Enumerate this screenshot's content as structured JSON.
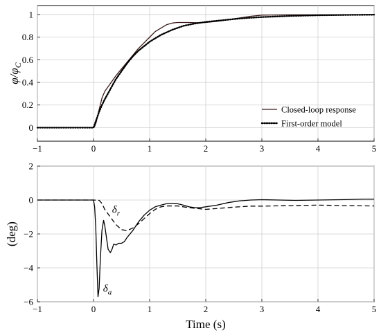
{
  "chart_data": [
    {
      "type": "line",
      "ylabel_main": "φ/φ",
      "ylabel_sub": "C",
      "xlim": [
        -1,
        5
      ],
      "ylim": [
        -0.12,
        1.08
      ],
      "xticks": [
        "−1",
        "0",
        "1",
        "2",
        "3",
        "4",
        "5"
      ],
      "yticks": [
        "0",
        "0.2",
        "0.4",
        "0.6",
        "0.8",
        "1"
      ],
      "grid": true,
      "legend_position": "bottom-right",
      "legend": [
        "Closed-loop response",
        "First-order model"
      ],
      "series": [
        {
          "name": "Closed-loop response",
          "style": "solid",
          "color": "#3a1a1a",
          "x": [
            -1,
            0,
            0.02,
            0.05,
            0.08,
            0.12,
            0.15,
            0.2,
            0.3,
            0.4,
            0.5,
            0.6,
            0.7,
            0.8,
            0.9,
            1.0,
            1.1,
            1.2,
            1.3,
            1.4,
            1.5,
            1.6,
            1.7,
            1.8,
            1.9,
            2.0,
            2.2,
            2.4,
            2.6,
            2.8,
            3.0,
            3.5,
            4.0,
            4.5,
            5.0
          ],
          "y": [
            0,
            0,
            0.01,
            0.05,
            0.12,
            0.2,
            0.26,
            0.32,
            0.39,
            0.46,
            0.52,
            0.58,
            0.64,
            0.7,
            0.75,
            0.8,
            0.85,
            0.88,
            0.91,
            0.925,
            0.93,
            0.93,
            0.93,
            0.928,
            0.928,
            0.93,
            0.94,
            0.955,
            0.97,
            0.985,
            0.995,
            0.998,
            0.998,
            0.998,
            1.0
          ]
        },
        {
          "name": "First-order model",
          "style": "dotted",
          "color": "#000000",
          "x": [
            -1,
            0,
            0.05,
            0.1,
            0.15,
            0.2,
            0.3,
            0.4,
            0.5,
            0.6,
            0.7,
            0.8,
            0.9,
            1.0,
            1.2,
            1.4,
            1.6,
            1.8,
            2.0,
            2.2,
            2.4,
            2.6,
            2.8,
            3.0,
            3.5,
            4.0,
            4.5,
            5.0
          ],
          "y": [
            0,
            0,
            0.07,
            0.14,
            0.2,
            0.25,
            0.34,
            0.43,
            0.5,
            0.57,
            0.63,
            0.68,
            0.72,
            0.76,
            0.82,
            0.865,
            0.9,
            0.92,
            0.935,
            0.945,
            0.955,
            0.965,
            0.972,
            0.978,
            0.988,
            0.994,
            0.997,
            0.999
          ]
        }
      ]
    },
    {
      "type": "line",
      "xlabel": "Time (s)",
      "ylabel": "(deg)",
      "xlim": [
        -1,
        5
      ],
      "ylim": [
        -6,
        2
      ],
      "xticks": [
        "−1",
        "0",
        "1",
        "2",
        "3",
        "4",
        "5"
      ],
      "yticks": [
        "−6",
        "−4",
        "−2",
        "0",
        "2"
      ],
      "grid": true,
      "annotations": [
        {
          "symbol": "δ",
          "sub": "r",
          "x": 0.33,
          "y": -0.75
        },
        {
          "symbol": "δ",
          "sub": "a",
          "x": 0.17,
          "y": -5.4
        }
      ],
      "series": [
        {
          "style": "solid",
          "color": "#000000",
          "x": [
            -1,
            0,
            0.02,
            0.04,
            0.06,
            0.08,
            0.1,
            0.12,
            0.15,
            0.18,
            0.2,
            0.23,
            0.26,
            0.3,
            0.33,
            0.36,
            0.4,
            0.45,
            0.5,
            0.55,
            0.6,
            0.7,
            0.8,
            0.9,
            1.0,
            1.1,
            1.2,
            1.3,
            1.4,
            1.5,
            1.6,
            1.7,
            1.8,
            1.9,
            2.0,
            2.2,
            2.4,
            2.6,
            2.8,
            3.0,
            3.3,
            3.6,
            4.0,
            4.4,
            4.8,
            5.0
          ],
          "y": [
            0,
            0,
            -0.4,
            -1.6,
            -3.8,
            -5.7,
            -5.2,
            -3.6,
            -1.8,
            -1.2,
            -1.5,
            -2.2,
            -2.9,
            -3.1,
            -2.9,
            -2.6,
            -2.65,
            -2.55,
            -2.55,
            -2.45,
            -2.2,
            -1.8,
            -1.3,
            -0.9,
            -0.6,
            -0.4,
            -0.3,
            -0.22,
            -0.2,
            -0.22,
            -0.3,
            -0.4,
            -0.45,
            -0.45,
            -0.4,
            -0.3,
            -0.15,
            -0.05,
            0.0,
            0.02,
            0.0,
            -0.02,
            0.0,
            0.02,
            0.05,
            0.05
          ]
        },
        {
          "style": "dashed",
          "color": "#000000",
          "x": [
            -1,
            0,
            0.1,
            0.15,
            0.2,
            0.3,
            0.4,
            0.5,
            0.6,
            0.7,
            0.8,
            0.9,
            1.0,
            1.1,
            1.2,
            1.3,
            1.5,
            1.7,
            2.0,
            2.2,
            2.5,
            2.8,
            3.0,
            3.5,
            4.0,
            4.5,
            5.0
          ],
          "y": [
            0,
            0,
            -0.02,
            -0.2,
            -0.55,
            -1.0,
            -1.45,
            -1.75,
            -1.8,
            -1.65,
            -1.4,
            -1.1,
            -0.8,
            -0.55,
            -0.4,
            -0.35,
            -0.35,
            -0.45,
            -0.55,
            -0.5,
            -0.42,
            -0.36,
            -0.36,
            -0.33,
            -0.3,
            -0.33,
            -0.35
          ]
        }
      ]
    }
  ]
}
